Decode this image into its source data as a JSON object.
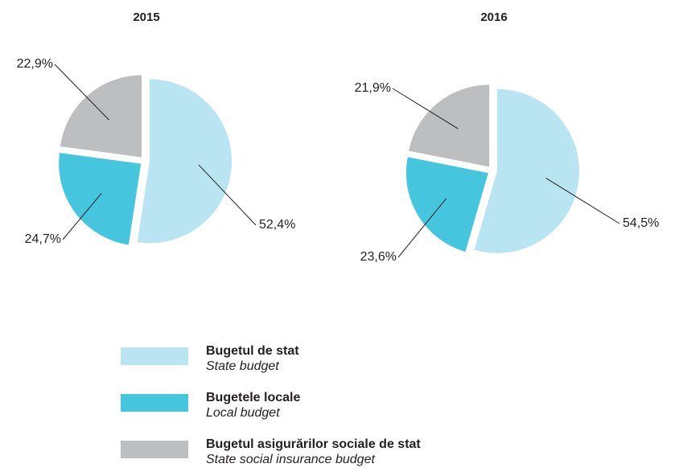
{
  "chart_data": [
    {
      "type": "pie",
      "title": "2015",
      "values": [
        52.4,
        24.7,
        22.9
      ],
      "value_labels": [
        "52,4%",
        "24,7%",
        "22,9%"
      ]
    },
    {
      "type": "pie",
      "title": "2016",
      "values": [
        54.5,
        23.6,
        21.9
      ],
      "value_labels": [
        "54,5%",
        "23,6%",
        "21,9%"
      ]
    }
  ],
  "legend": {
    "items": [
      {
        "label": "Bugetul de stat",
        "sublabel": "State budget",
        "color": "#b9e4f1"
      },
      {
        "label": "Bugetele locale",
        "sublabel": "Local budget",
        "color": "#45c5de"
      },
      {
        "label": "Bugetul asigurărilor sociale de stat",
        "sublabel": "State social insurance budget",
        "color": "#bcbec0"
      }
    ]
  }
}
